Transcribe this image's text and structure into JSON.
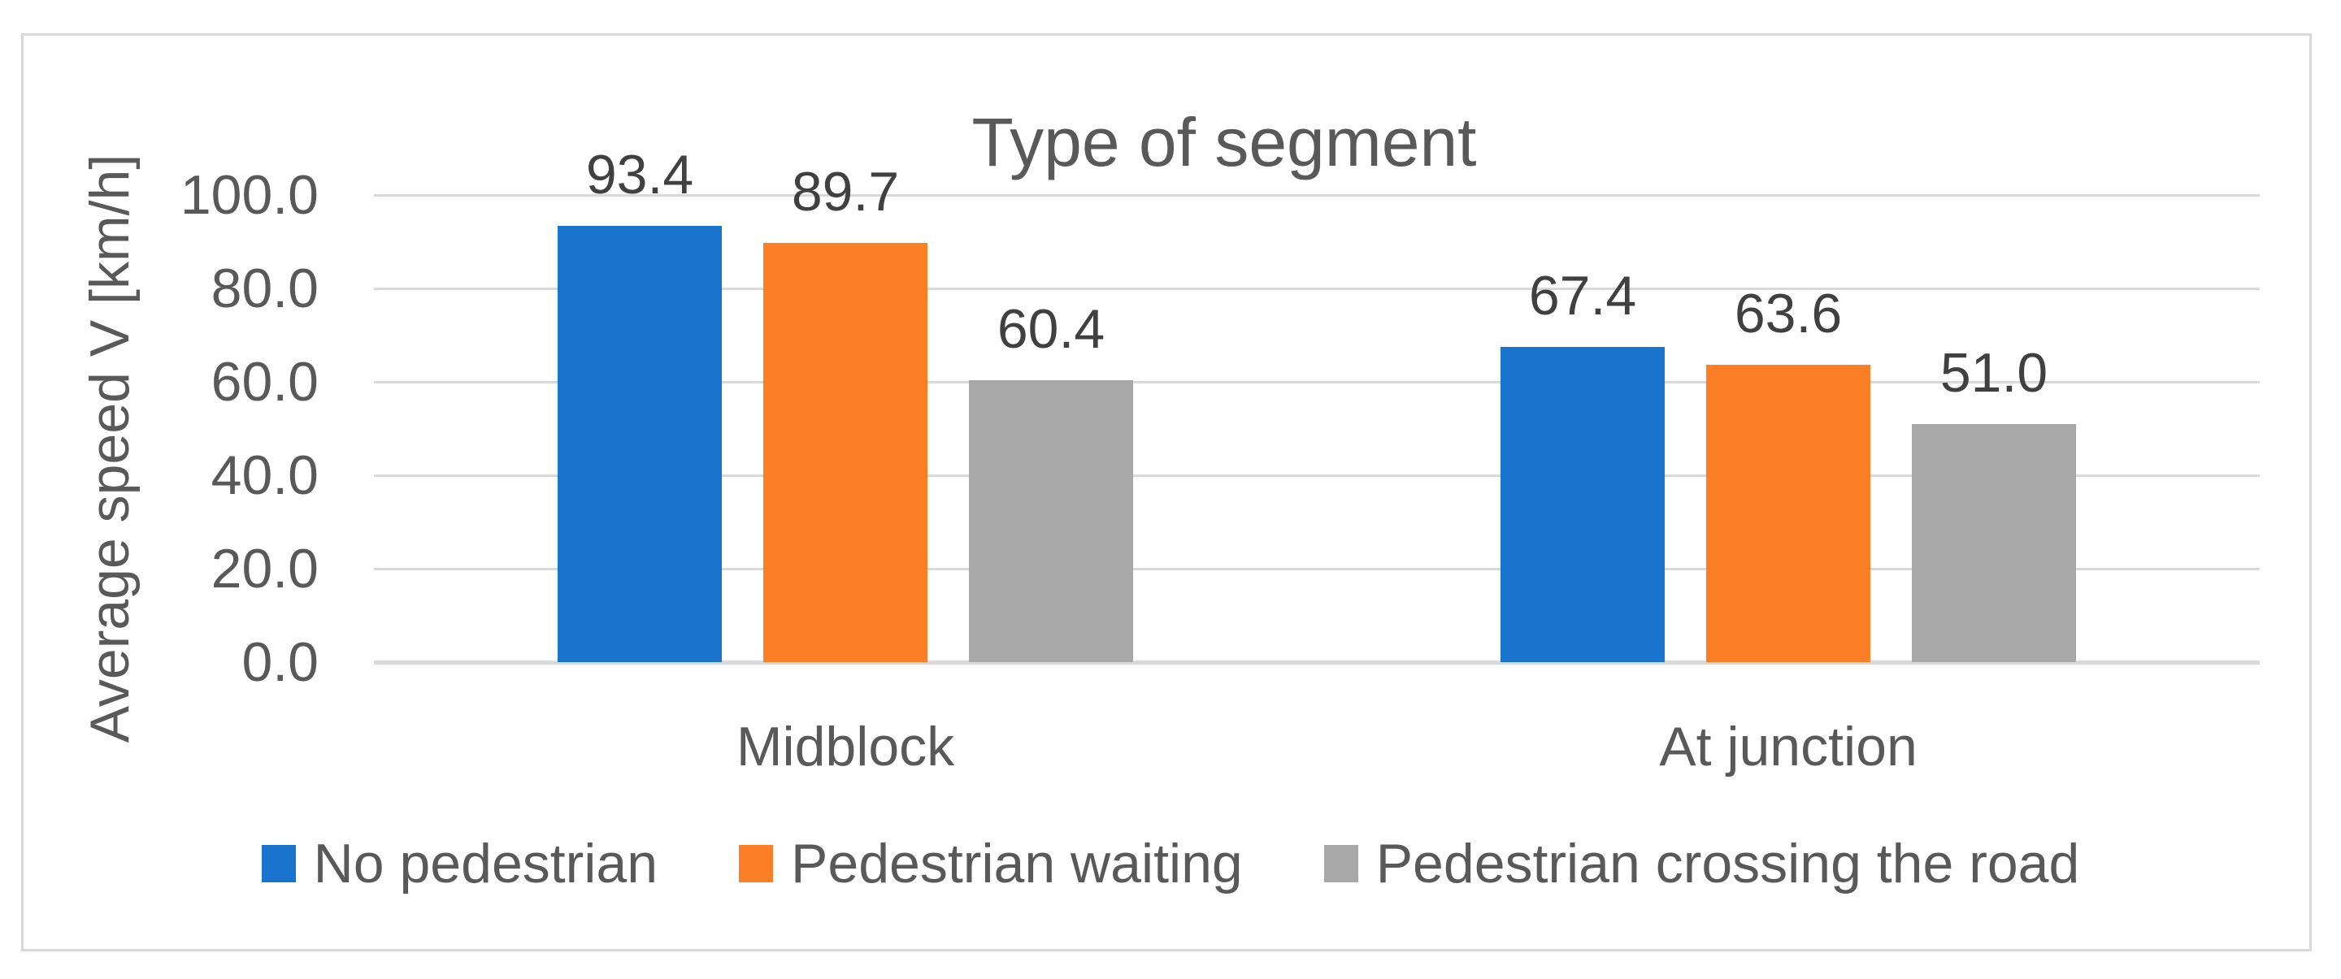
{
  "chart_data": {
    "type": "bar",
    "title": "Type of segment",
    "ylabel": "Average speed V [km/h]",
    "xlabel": "",
    "categories": [
      "Midblock",
      "At junction"
    ],
    "series": [
      {
        "name": "No pedestrian",
        "color": "#1974CD",
        "values": [
          93.4,
          67.4
        ],
        "labels": [
          "93.4",
          "67.4"
        ]
      },
      {
        "name": "Pedestrian waiting",
        "color": "#FC7E27",
        "values": [
          89.7,
          63.6
        ],
        "labels": [
          "89.7",
          "63.6"
        ]
      },
      {
        "name": "Pedestrian crossing the road",
        "color": "#A8A8A8",
        "values": [
          60.4,
          51.0
        ],
        "labels": [
          "60.4",
          "51.0"
        ]
      }
    ],
    "ylim": [
      0,
      100
    ],
    "ytick_step": 20,
    "yticks": [
      {
        "value": 0,
        "label": "0.0"
      },
      {
        "value": 20,
        "label": "20.0"
      },
      {
        "value": 40,
        "label": "40.0"
      },
      {
        "value": 60,
        "label": "60.0"
      },
      {
        "value": 80,
        "label": "80.0"
      },
      {
        "value": 100,
        "label": "100.0"
      }
    ],
    "grid": true,
    "legend_position": "bottom"
  },
  "colors": {
    "gridline": "#D9D9D9",
    "axis_line": "#D9D9D9",
    "frame_border": "#D9D9D9",
    "axis_text": "#595959",
    "data_label_text": "#404040",
    "background": "#ffffff"
  }
}
